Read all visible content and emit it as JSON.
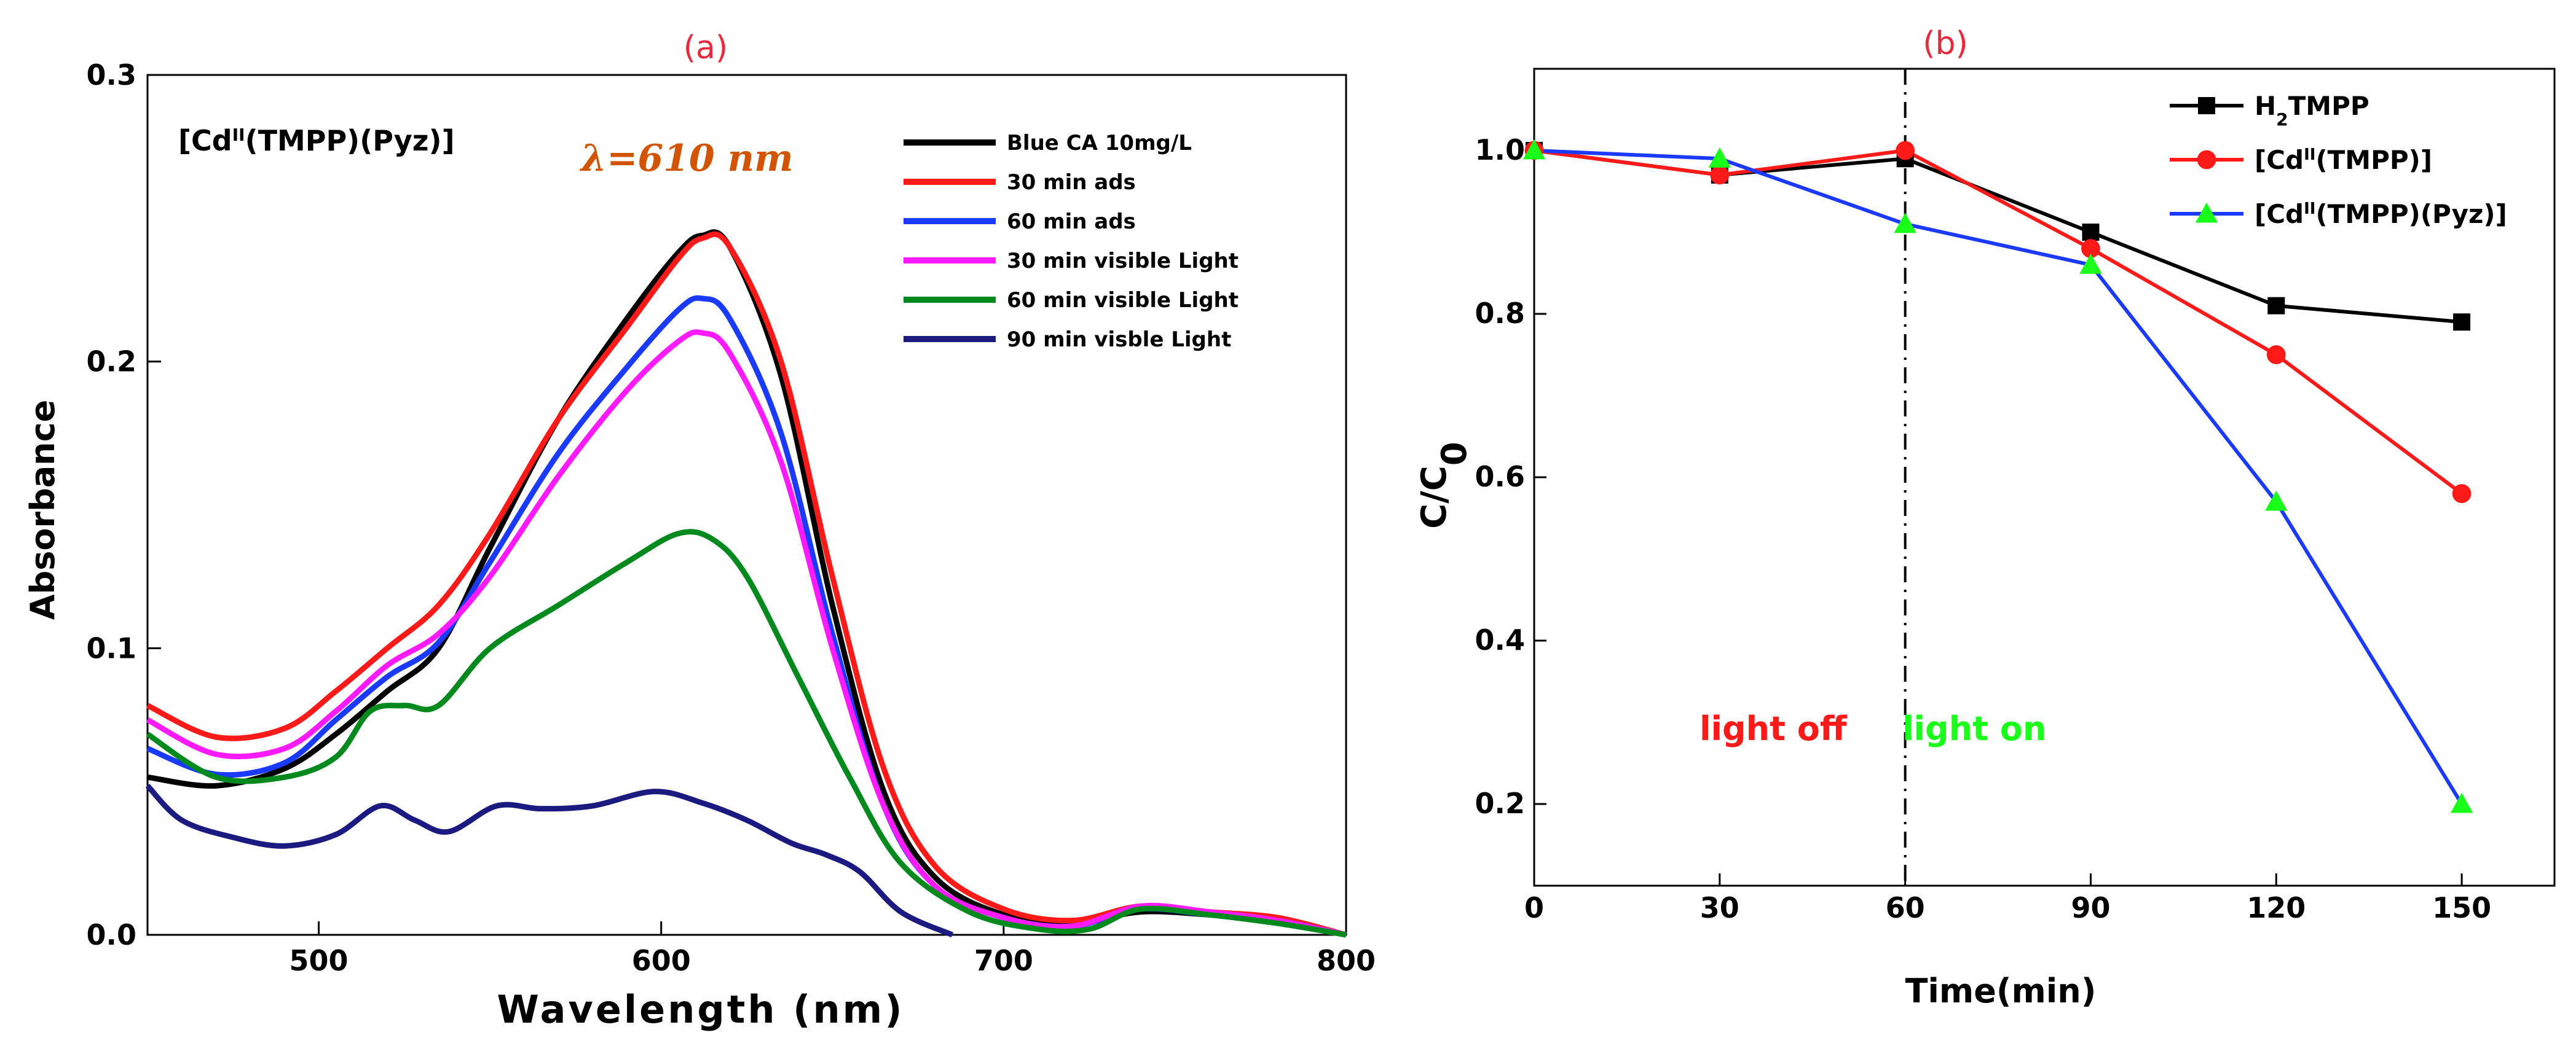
{
  "chart_data": [
    {
      "panel": "(a)",
      "type": "line",
      "title": "",
      "xlabel": "Wavelength (nm)",
      "ylabel": "Absorbance",
      "xlim": [
        450,
        800
      ],
      "ylim": [
        0.0,
        0.3
      ],
      "xticks": [
        500,
        600,
        700,
        800
      ],
      "xtick_labels": [
        "500",
        "600",
        "700",
        "800"
      ],
      "yticks": [
        0.0,
        0.1,
        0.2,
        0.3
      ],
      "ytick_labels": [
        "0.0",
        "0.1",
        "0.2",
        "0.3"
      ],
      "compound_label": "[Cd",
      "compound_sup": "II",
      "compound_rest": "(TMPP)(Pyz)]",
      "annotation": "λ=610 nm",
      "legend_position": "top-right",
      "series": [
        {
          "name": "Blue CA 10mg/L",
          "color": "#000000",
          "x": [
            450,
            470,
            490,
            505,
            520,
            535,
            550,
            570,
            590,
            605,
            612,
            620,
            635,
            650,
            665,
            680,
            700,
            720,
            740,
            760,
            780,
            800
          ],
          "y": [
            0.055,
            0.052,
            0.058,
            0.07,
            0.085,
            0.1,
            0.135,
            0.18,
            0.215,
            0.238,
            0.244,
            0.24,
            0.195,
            0.115,
            0.05,
            0.02,
            0.007,
            0.004,
            0.008,
            0.007,
            0.005,
            0.0
          ]
        },
        {
          "name": "30 min ads",
          "color": "#ff1a1a",
          "x": [
            450,
            470,
            490,
            505,
            520,
            535,
            550,
            570,
            590,
            605,
            612,
            620,
            635,
            650,
            665,
            680,
            700,
            720,
            740,
            760,
            780,
            800
          ],
          "y": [
            0.08,
            0.069,
            0.072,
            0.085,
            0.1,
            0.115,
            0.14,
            0.18,
            0.212,
            0.236,
            0.243,
            0.24,
            0.2,
            0.125,
            0.058,
            0.024,
            0.009,
            0.005,
            0.01,
            0.008,
            0.006,
            0.0
          ]
        },
        {
          "name": "60 min ads",
          "color": "#1a3aff",
          "x": [
            450,
            470,
            490,
            505,
            520,
            535,
            550,
            570,
            590,
            605,
            612,
            620,
            635,
            650,
            665,
            680,
            700,
            720,
            740,
            760,
            780,
            800
          ],
          "y": [
            0.065,
            0.056,
            0.06,
            0.075,
            0.09,
            0.102,
            0.13,
            0.168,
            0.198,
            0.218,
            0.222,
            0.215,
            0.175,
            0.105,
            0.045,
            0.017,
            0.006,
            0.003,
            0.009,
            0.007,
            0.005,
            0.0
          ]
        },
        {
          "name": "30 min visible Light",
          "color": "#ff1aff",
          "x": [
            450,
            470,
            490,
            505,
            520,
            535,
            550,
            570,
            590,
            605,
            612,
            620,
            635,
            650,
            665,
            680,
            700,
            720,
            740,
            760,
            780,
            800
          ],
          "y": [
            0.075,
            0.063,
            0.065,
            0.078,
            0.094,
            0.105,
            0.125,
            0.16,
            0.19,
            0.207,
            0.21,
            0.203,
            0.165,
            0.1,
            0.045,
            0.017,
            0.006,
            0.003,
            0.01,
            0.008,
            0.005,
            0.0
          ]
        },
        {
          "name": "60 min visible Light",
          "color": "#008a1e",
          "x": [
            450,
            470,
            490,
            505,
            515,
            525,
            535,
            550,
            570,
            590,
            605,
            615,
            625,
            640,
            655,
            670,
            690,
            710,
            725,
            740,
            760,
            780,
            800
          ],
          "y": [
            0.07,
            0.055,
            0.055,
            0.062,
            0.078,
            0.08,
            0.08,
            0.1,
            0.115,
            0.13,
            0.14,
            0.138,
            0.125,
            0.09,
            0.055,
            0.025,
            0.008,
            0.002,
            0.002,
            0.009,
            0.007,
            0.004,
            0.0
          ]
        },
        {
          "name": "90 min visble Light",
          "color": "#1a1a80",
          "x": [
            450,
            460,
            475,
            490,
            505,
            518,
            528,
            538,
            552,
            565,
            580,
            598,
            612,
            625,
            638,
            648,
            658,
            670,
            685
          ],
          "y": [
            0.052,
            0.04,
            0.034,
            0.031,
            0.035,
            0.045,
            0.04,
            0.036,
            0.045,
            0.044,
            0.045,
            0.05,
            0.046,
            0.04,
            0.032,
            0.028,
            0.022,
            0.008,
            0.0
          ]
        }
      ]
    },
    {
      "panel": "(b)",
      "type": "line",
      "title": "",
      "xlabel": "Time(min)",
      "ylabel_main": "C/C",
      "ylabel_sub": "0",
      "xlim": [
        0,
        165
      ],
      "ylim": [
        0.1,
        1.1
      ],
      "xticks": [
        0,
        30,
        60,
        90,
        120,
        150
      ],
      "xtick_labels": [
        "0",
        "30",
        "60",
        "90",
        "120",
        "150"
      ],
      "yticks": [
        0.2,
        0.4,
        0.6,
        0.8,
        1.0
      ],
      "ytick_labels": [
        "0.2",
        "0.4",
        "0.6",
        "0.8",
        "1.0"
      ],
      "vline_x": 60,
      "light_off_label": "light off",
      "light_on_label": "light on",
      "light_off_color": "#ff1a1a",
      "light_on_color": "#1aff1a",
      "legend_position": "top-right",
      "series": [
        {
          "name": "TMPP",
          "name_prefix": "H",
          "name_sub": "2",
          "color": "#000000",
          "marker": "square",
          "x": [
            0,
            30,
            60,
            90,
            120,
            150
          ],
          "y": [
            1.0,
            0.97,
            0.99,
            0.9,
            0.81,
            0.79
          ]
        },
        {
          "name": "(TMPP)]",
          "name_prefix": "[Cd",
          "name_sup": "II",
          "color": "#ff1a1a",
          "marker": "circle",
          "x": [
            0,
            30,
            60,
            90,
            120,
            150
          ],
          "y": [
            1.0,
            0.97,
            1.0,
            0.88,
            0.75,
            0.58
          ]
        },
        {
          "name": "(TMPP)(Pyz)]",
          "name_prefix": "[Cd",
          "name_sup": "II",
          "color": "#1a3aff",
          "marker": "triangle",
          "marker_color": "#1aff1a",
          "x": [
            0,
            30,
            60,
            90,
            120,
            150
          ],
          "y": [
            1.0,
            0.99,
            0.91,
            0.86,
            0.57,
            0.2
          ]
        }
      ]
    }
  ]
}
